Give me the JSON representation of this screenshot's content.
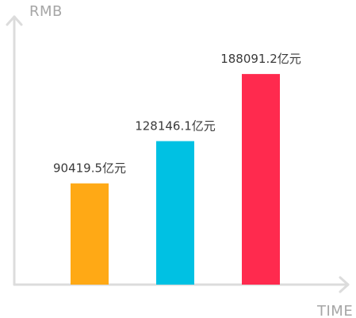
{
  "chart_data": {
    "type": "bar",
    "title": "",
    "xlabel": "TIME",
    "ylabel": "RMB",
    "categories": [
      "",
      "",
      ""
    ],
    "values": [
      90419.5,
      128146.1,
      188091.2
    ],
    "data_labels": [
      "90419.5亿元",
      "128146.1亿元",
      "188091.2亿元"
    ],
    "colors": [
      "#FFA915",
      "#00C1E3",
      "#FF2A4E"
    ],
    "ylim": [
      0,
      240000
    ],
    "grid": false,
    "legend": "none"
  },
  "colors": {
    "axis": "#DCDCDC",
    "axis_label": "#A6A6A6",
    "value_label": "#3A3A3A"
  }
}
